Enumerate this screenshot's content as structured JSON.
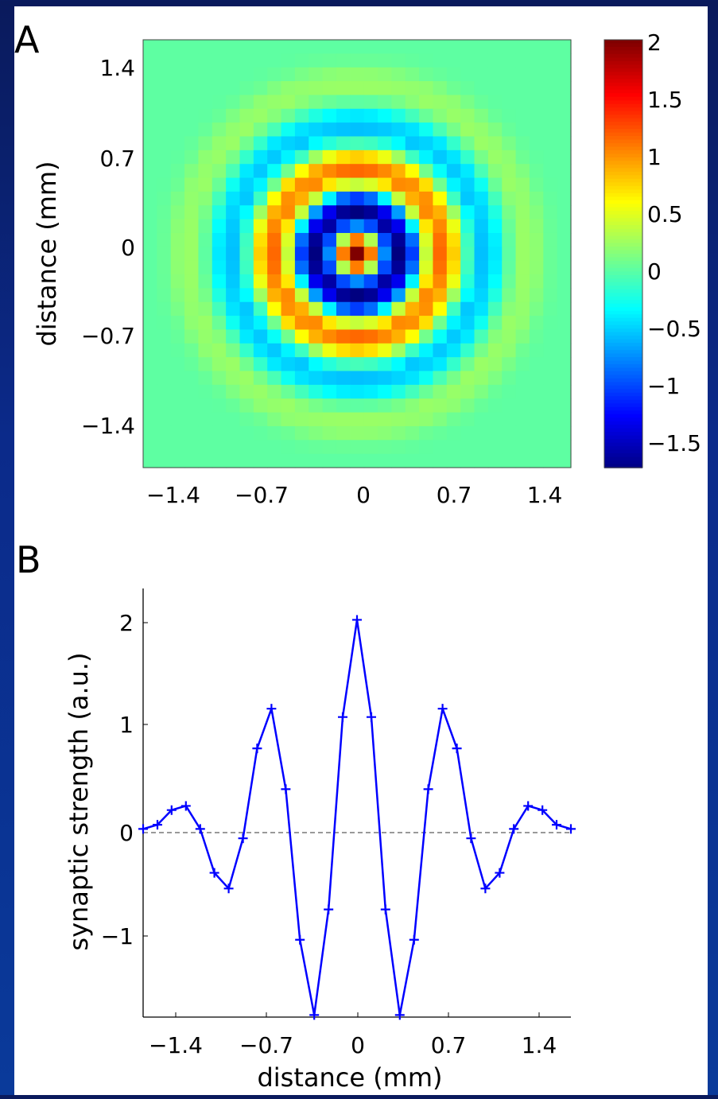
{
  "panel_a": {
    "letter": "A",
    "ylabel": "distance (mm)",
    "xticks": [
      "−1.4",
      "−0.7",
      "0",
      "0.7",
      "1.4"
    ],
    "yticks": [
      "1.4",
      "0.7",
      "0",
      "−0.7",
      "−1.4"
    ],
    "colorbar_ticks": [
      "2",
      "1.5",
      "1",
      "0.5",
      "0",
      "−0.5",
      "−1",
      "−1.5"
    ]
  },
  "panel_b": {
    "letter": "B",
    "xlabel": "distance (mm)",
    "ylabel": "synaptic strength (a.u.)",
    "xticks": [
      "−1.4",
      "−0.7",
      "0",
      "0.7",
      "1.4"
    ],
    "yticks": [
      "2",
      "1",
      "0",
      "−1"
    ]
  },
  "chart_data": [
    {
      "type": "heatmap",
      "xlabel": "",
      "ylabel": "distance (mm)",
      "xlim": [
        -1.6,
        1.6
      ],
      "ylim": [
        -1.6,
        1.6
      ],
      "grid_size": 31,
      "cell_step_mm": 0.1067,
      "function": "radially symmetric synaptic strength; profile equals panel B values at radial distance",
      "colorbar": {
        "min": -1.75,
        "max": 2.0,
        "ticks": [
          2,
          1.5,
          1,
          0.5,
          0,
          -0.5,
          -1,
          -1.5
        ],
        "colormap": "jet"
      },
      "grid": false
    },
    {
      "type": "line",
      "xlabel": "distance (mm)",
      "ylabel": "synaptic strength (a.u.)",
      "xlim": [
        -1.6,
        1.6
      ],
      "ylim": [
        -1.8,
        2.3
      ],
      "x": [
        -1.6,
        -1.493,
        -1.387,
        -1.28,
        -1.173,
        -1.067,
        -0.96,
        -0.853,
        -0.747,
        -0.64,
        -0.533,
        -0.427,
        -0.32,
        -0.213,
        -0.107,
        0,
        0.107,
        0.213,
        0.32,
        0.427,
        0.533,
        0.64,
        0.747,
        0.853,
        0.96,
        1.067,
        1.173,
        1.28,
        1.387,
        1.493,
        1.6
      ],
      "series": [
        {
          "values": [
            0.0,
            0.04,
            0.18,
            0.22,
            0.0,
            -0.42,
            -0.57,
            -0.09,
            0.77,
            1.15,
            0.38,
            -1.06,
            -1.78,
            -0.77,
            1.07,
            2.0,
            1.07,
            -0.77,
            -1.78,
            -1.06,
            0.38,
            1.15,
            0.77,
            -0.09,
            -0.57,
            -0.42,
            0.0,
            0.22,
            0.18,
            0.04,
            0.0
          ],
          "color": "#0000ff",
          "marker": "+"
        }
      ],
      "reference_line": {
        "y": 0,
        "style": "dashed",
        "color": "#333333"
      },
      "grid": false
    }
  ]
}
